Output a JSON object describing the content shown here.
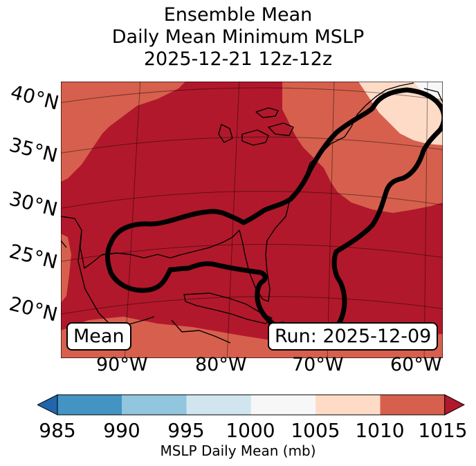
{
  "title": {
    "line1": "Ensemble Mean",
    "line2": "Daily Mean Minimum MSLP",
    "line3": "2025-12-21 12z-12z"
  },
  "map": {
    "lat_labels": [
      "40°N",
      "35°N",
      "30°N",
      "25°N",
      "20°N"
    ],
    "lon_labels": [
      "90°W",
      "80°W",
      "70°W",
      "60°W"
    ],
    "mean_box": "Mean",
    "run_box": "Run: 2025-12-09",
    "colors": {
      "dark_red": "#b2182b",
      "red": "#d6604d",
      "peach": "#fddbc7",
      "white": "#f7f7f7"
    }
  },
  "colorbar": {
    "label": "MSLP Daily Mean (mb)",
    "ticks": [
      "985",
      "990",
      "995",
      "1000",
      "1005",
      "1010",
      "1015"
    ],
    "colors": [
      "#2166ac",
      "#4393c3",
      "#92c5de",
      "#d1e5f0",
      "#f7f7f7",
      "#fddbc7",
      "#d6604d",
      "#b2182b"
    ]
  }
}
